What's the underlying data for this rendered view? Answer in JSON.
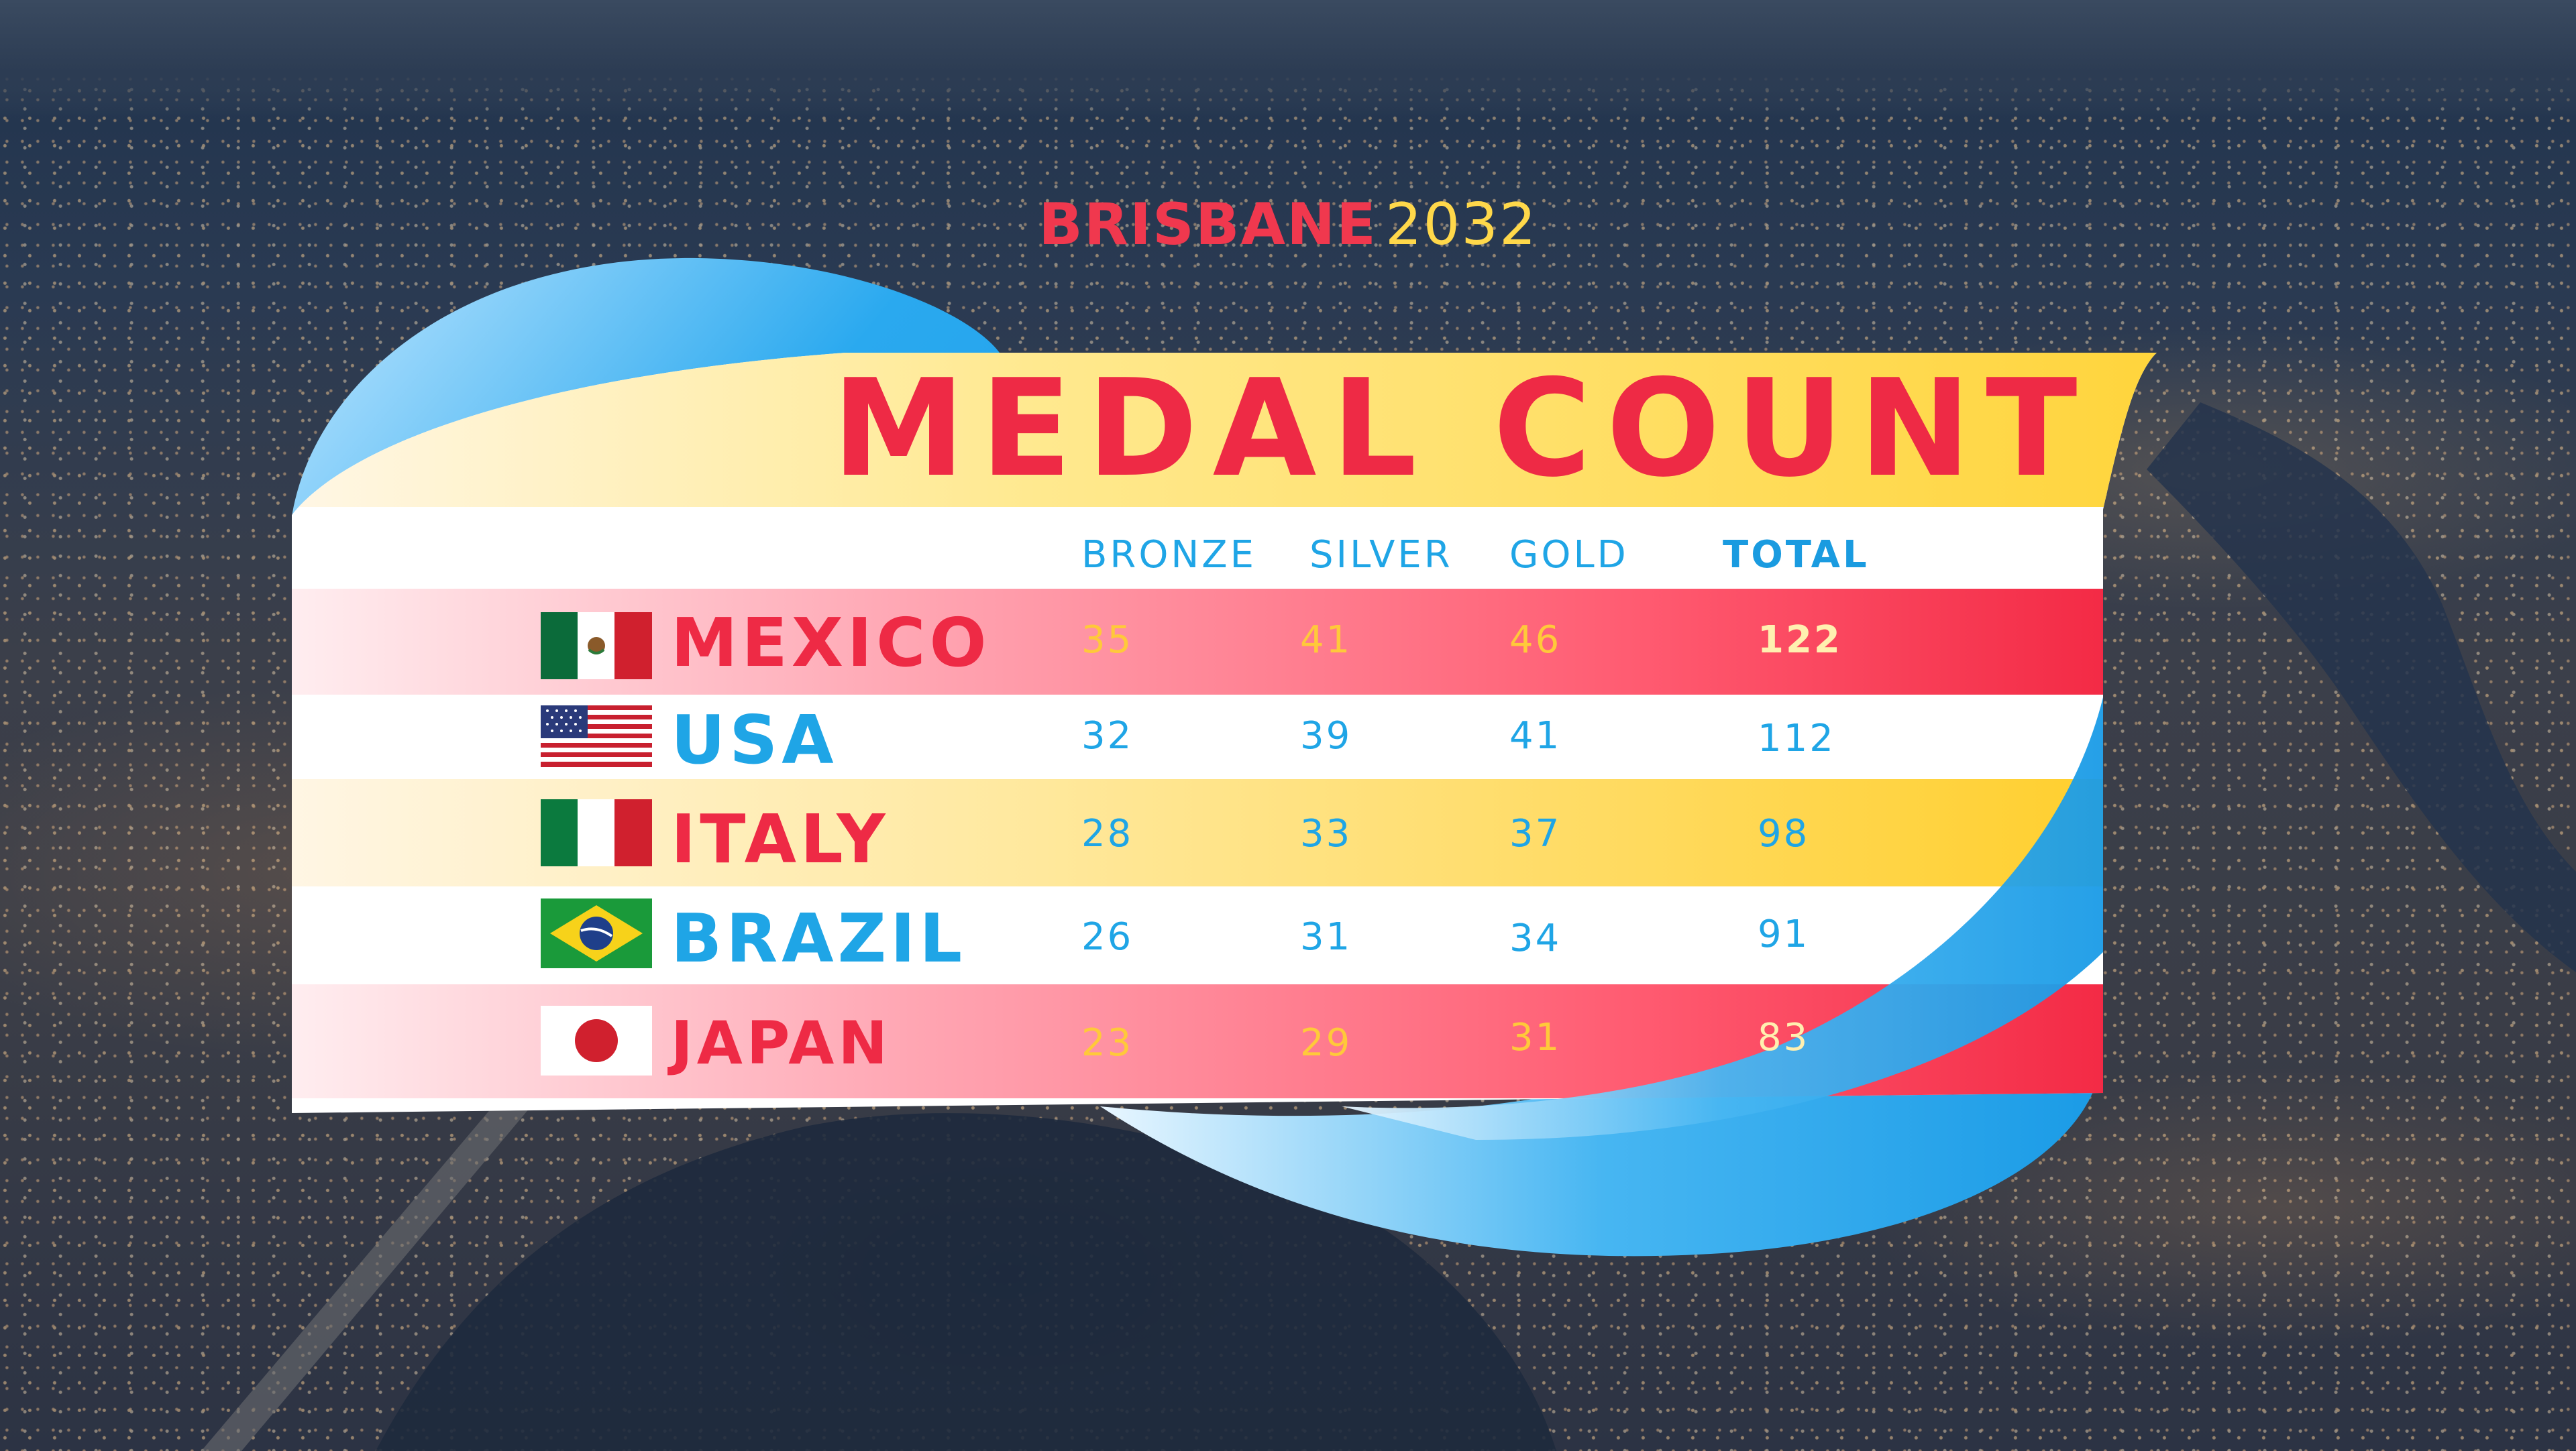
{
  "header": {
    "city": "BRISBANE",
    "year": "2032"
  },
  "title": "MEDAL COUNT",
  "columns": {
    "bronze": "BRONZE",
    "silver": "SILVER",
    "gold": "GOLD",
    "total": "TOTAL"
  },
  "rows": [
    {
      "country": "MEXICO",
      "flag": "mexico-flag-icon",
      "bronze": "35",
      "silver": "41",
      "gold": "46",
      "total": "122"
    },
    {
      "country": "USA",
      "flag": "usa-flag-icon",
      "bronze": "32",
      "silver": "39",
      "gold": "41",
      "total": "112"
    },
    {
      "country": "ITALY",
      "flag": "italy-flag-icon",
      "bronze": "28",
      "silver": "33",
      "gold": "37",
      "total": "98"
    },
    {
      "country": "BRAZIL",
      "flag": "brazil-flag-icon",
      "bronze": "26",
      "silver": "31",
      "gold": "34",
      "total": "91"
    },
    {
      "country": "JAPAN",
      "flag": "japan-flag-icon",
      "bronze": "23",
      "silver": "29",
      "gold": "31",
      "total": "83"
    }
  ],
  "colors": {
    "red": "#ee2a45",
    "yellow": "#ffd84a",
    "blue": "#1fa5e6",
    "white": "#ffffff"
  }
}
